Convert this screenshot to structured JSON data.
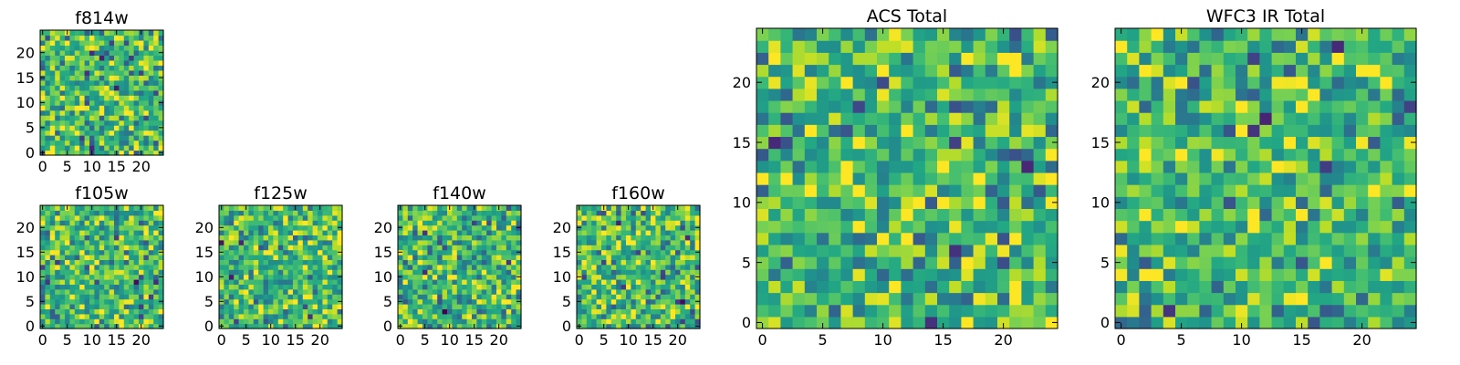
{
  "colormap": "viridis",
  "colors": {
    "viridis_low": "#440154",
    "viridis_mid": "#21918c",
    "viridis_high": "#fde725",
    "frame": "#000000",
    "background": "#ffffff"
  },
  "chart_data": [
    {
      "id": "f814w",
      "type": "heatmap",
      "title": "f814w",
      "shape": [
        25,
        25
      ],
      "xticks": [
        0,
        5,
        10,
        15,
        20
      ],
      "yticks": [
        0,
        5,
        10,
        15,
        20
      ],
      "xlim": [
        -0.5,
        24.5
      ],
      "ylim": [
        -0.5,
        24.5
      ],
      "origin": "lower",
      "seed": 814
    },
    {
      "id": "f105w",
      "type": "heatmap",
      "title": "f105w",
      "shape": [
        25,
        25
      ],
      "xticks": [
        0,
        5,
        10,
        15,
        20
      ],
      "yticks": [
        0,
        5,
        10,
        15,
        20
      ],
      "xlim": [
        -0.5,
        24.5
      ],
      "ylim": [
        -0.5,
        24.5
      ],
      "origin": "lower",
      "seed": 105
    },
    {
      "id": "f125w",
      "type": "heatmap",
      "title": "f125w",
      "shape": [
        25,
        25
      ],
      "xticks": [
        0,
        5,
        10,
        15,
        20
      ],
      "yticks": [
        0,
        5,
        10,
        15,
        20
      ],
      "xlim": [
        -0.5,
        24.5
      ],
      "ylim": [
        -0.5,
        24.5
      ],
      "origin": "lower",
      "seed": 125
    },
    {
      "id": "f140w",
      "type": "heatmap",
      "title": "f140w",
      "shape": [
        25,
        25
      ],
      "xticks": [
        0,
        5,
        10,
        15,
        20
      ],
      "yticks": [
        0,
        5,
        10,
        15,
        20
      ],
      "xlim": [
        -0.5,
        24.5
      ],
      "ylim": [
        -0.5,
        24.5
      ],
      "origin": "lower",
      "seed": 140
    },
    {
      "id": "f160w",
      "type": "heatmap",
      "title": "f160w",
      "shape": [
        25,
        25
      ],
      "xticks": [
        0,
        5,
        10,
        15,
        20
      ],
      "yticks": [
        0,
        5,
        10,
        15,
        20
      ],
      "xlim": [
        -0.5,
        24.5
      ],
      "ylim": [
        -0.5,
        24.5
      ],
      "origin": "lower",
      "seed": 160
    },
    {
      "id": "acs-total",
      "type": "heatmap",
      "title": "ACS Total",
      "shape": [
        25,
        25
      ],
      "xticks": [
        0,
        5,
        10,
        15,
        20
      ],
      "yticks": [
        0,
        5,
        10,
        15,
        20
      ],
      "xlim": [
        -0.5,
        24.5
      ],
      "ylim": [
        -0.5,
        24.5
      ],
      "origin": "lower",
      "seed": 777
    },
    {
      "id": "wfc3-ir-total",
      "type": "heatmap",
      "title": "WFC3 IR Total",
      "shape": [
        25,
        25
      ],
      "xticks": [
        0,
        5,
        10,
        15,
        20
      ],
      "yticks": [
        0,
        5,
        10,
        15,
        20
      ],
      "xlim": [
        -0.5,
        24.5
      ],
      "ylim": [
        -0.5,
        24.5
      ],
      "origin": "lower",
      "seed": 333
    }
  ]
}
